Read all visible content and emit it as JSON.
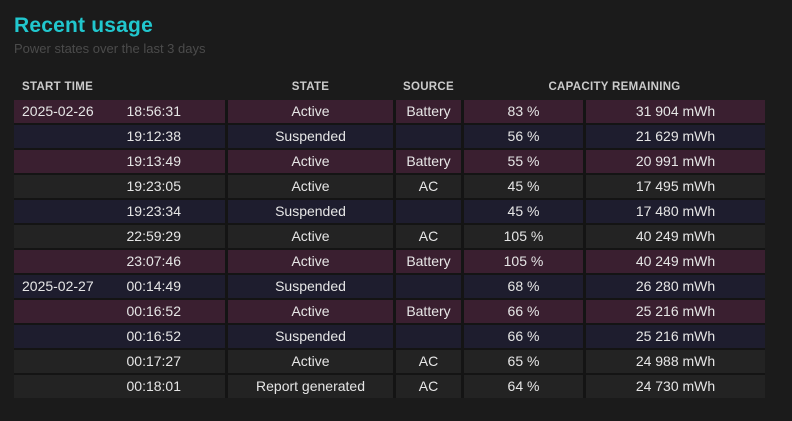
{
  "header": {
    "title": "Recent usage",
    "subtitle": "Power states over the last 3 days"
  },
  "colors": {
    "background": "#1b1b1b",
    "title_accent": "#21c7ce",
    "row_battery": "#3a1f30",
    "row_suspended": "#1e1d2e",
    "row_ac": "#232323",
    "header_text": "#cbcbcb",
    "cell_text": "#e6e6e6"
  },
  "table": {
    "columns": [
      {
        "key": "start_time",
        "label": "START TIME"
      },
      {
        "key": "state",
        "label": "STATE"
      },
      {
        "key": "source",
        "label": "SOURCE"
      },
      {
        "key": "capacity_remaining",
        "label": "CAPACITY REMAINING"
      }
    ],
    "rows": [
      {
        "date": "2025-02-26",
        "time": "18:56:31",
        "state": "Active",
        "source": "Battery",
        "percent": "83 %",
        "mwh": "31 904 mWh",
        "variant": "battery"
      },
      {
        "date": "",
        "time": "19:12:38",
        "state": "Suspended",
        "source": "",
        "percent": "56 %",
        "mwh": "21 629 mWh",
        "variant": "suspended"
      },
      {
        "date": "",
        "time": "19:13:49",
        "state": "Active",
        "source": "Battery",
        "percent": "55 %",
        "mwh": "20 991 mWh",
        "variant": "battery"
      },
      {
        "date": "",
        "time": "19:23:05",
        "state": "Active",
        "source": "AC",
        "percent": "45 %",
        "mwh": "17 495 mWh",
        "variant": "ac"
      },
      {
        "date": "",
        "time": "19:23:34",
        "state": "Suspended",
        "source": "",
        "percent": "45 %",
        "mwh": "17 480 mWh",
        "variant": "suspended"
      },
      {
        "date": "",
        "time": "22:59:29",
        "state": "Active",
        "source": "AC",
        "percent": "105 %",
        "mwh": "40 249 mWh",
        "variant": "ac"
      },
      {
        "date": "",
        "time": "23:07:46",
        "state": "Active",
        "source": "Battery",
        "percent": "105 %",
        "mwh": "40 249 mWh",
        "variant": "battery"
      },
      {
        "date": "2025-02-27",
        "time": "00:14:49",
        "state": "Suspended",
        "source": "",
        "percent": "68 %",
        "mwh": "26 280 mWh",
        "variant": "suspended"
      },
      {
        "date": "",
        "time": "00:16:52",
        "state": "Active",
        "source": "Battery",
        "percent": "66 %",
        "mwh": "25 216 mWh",
        "variant": "battery"
      },
      {
        "date": "",
        "time": "00:16:52",
        "state": "Suspended",
        "source": "",
        "percent": "66 %",
        "mwh": "25 216 mWh",
        "variant": "suspended"
      },
      {
        "date": "",
        "time": "00:17:27",
        "state": "Active",
        "source": "AC",
        "percent": "65 %",
        "mwh": "24 988 mWh",
        "variant": "ac"
      },
      {
        "date": "",
        "time": "00:18:01",
        "state": "Report generated",
        "source": "AC",
        "percent": "64 %",
        "mwh": "24 730 mWh",
        "variant": "ac"
      }
    ]
  }
}
